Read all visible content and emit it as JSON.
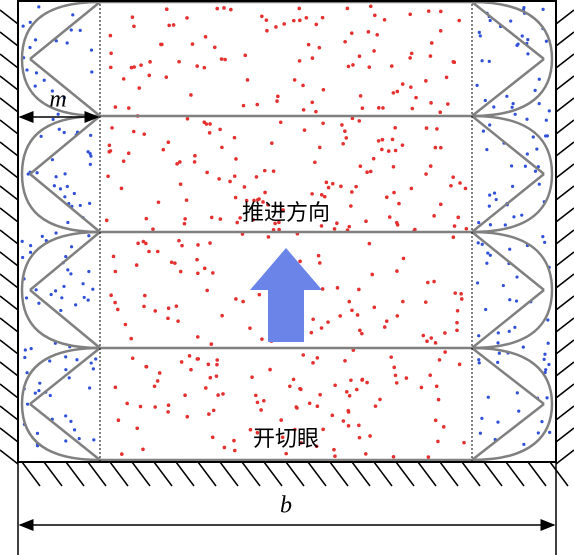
{
  "labels": {
    "pillar_width": "m",
    "advance_direction": "推进方向",
    "open_off_cut": "开切眼",
    "panel_width": "b"
  }
}
